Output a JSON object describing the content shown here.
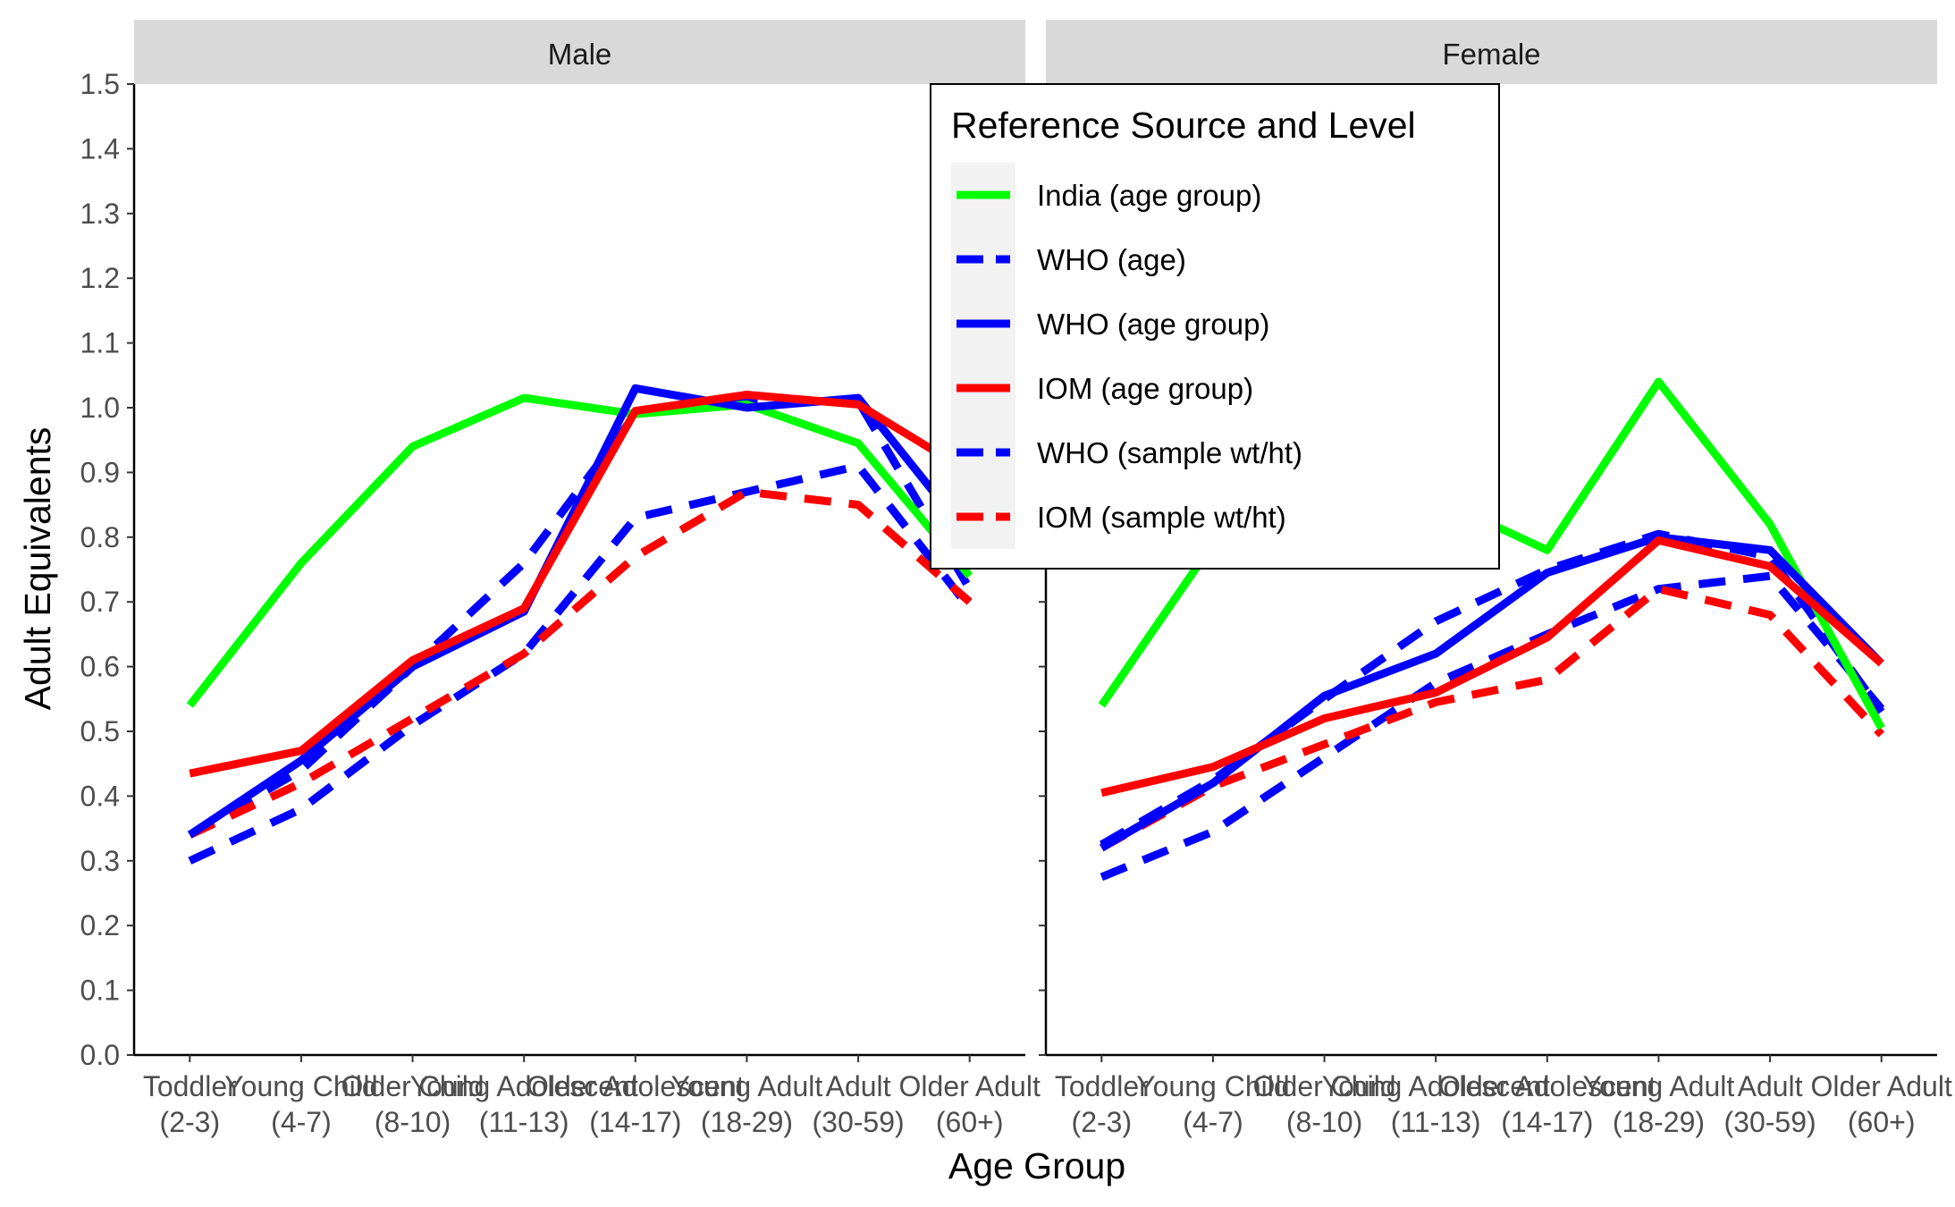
{
  "chart_data": {
    "type": "line",
    "xlabel": "Age Group",
    "ylabel": "Adult Equivalents",
    "ylim": [
      0,
      1.5
    ],
    "yticks": [
      "0.0",
      "0.1",
      "0.2",
      "0.3",
      "0.4",
      "0.5",
      "0.6",
      "0.7",
      "0.8",
      "0.9",
      "1.0",
      "1.1",
      "1.2",
      "1.3",
      "1.4",
      "1.5"
    ],
    "categories": [
      [
        "Toddler",
        "(2-3)"
      ],
      [
        "Young Child",
        "(4-7)"
      ],
      [
        "Older Child",
        "(8-10)"
      ],
      [
        "Young Adolescent",
        "(11-13)"
      ],
      [
        "Older Adolescent",
        "(14-17)"
      ],
      [
        "Young Adult",
        "(18-29)"
      ],
      [
        "Adult",
        "(30-59)"
      ],
      [
        "Older Adult",
        "(60+)"
      ]
    ],
    "grid": false,
    "legend": {
      "title": "Reference Source and Level",
      "placement": "top-center",
      "entries": [
        {
          "name": "India (age group)",
          "color": "#00ff00",
          "dash": "solid"
        },
        {
          "name": "WHO (age)",
          "color": "#0000ff",
          "dash": "dashed"
        },
        {
          "name": "WHO (age group)",
          "color": "#0000ff",
          "dash": "solid"
        },
        {
          "name": "IOM (age group)",
          "color": "#ff0000",
          "dash": "solid"
        },
        {
          "name": "WHO (sample wt/ht)",
          "color": "#0000ff",
          "dash": "dashed"
        },
        {
          "name": "IOM (sample wt/ht)",
          "color": "#ff0000",
          "dash": "dashed"
        }
      ]
    },
    "panels": [
      {
        "strip": "Male",
        "series": [
          {
            "name": "WHO (age)",
            "color": "#0000ff",
            "dash": "dashed",
            "values": [
              0.3,
              0.38,
              0.51,
              0.62,
              0.83,
              0.87,
              0.91,
              0.69
            ]
          },
          {
            "name": "WHO (sample wt/ht)",
            "color": "#0000ff",
            "dash": "dashed",
            "values": [
              0.34,
              0.44,
              0.6,
              0.76,
              0.99,
              1.01,
              1.01,
              0.72
            ]
          },
          {
            "name": "IOM (sample wt/ht)",
            "color": "#ff0000",
            "dash": "dashed",
            "values": [
              0.34,
              0.42,
              0.52,
              0.62,
              0.77,
              0.87,
              0.85,
              0.7
            ]
          },
          {
            "name": "India (age group)",
            "color": "#00ff00",
            "dash": "solid",
            "values": [
              0.54,
              0.76,
              0.94,
              1.015,
              0.99,
              1.005,
              0.945,
              0.74
            ]
          },
          {
            "name": "WHO (age group)",
            "color": "#0000ff",
            "dash": "solid",
            "values": [
              0.34,
              0.455,
              0.6,
              0.685,
              1.03,
              1.0,
              1.015,
              0.8
            ]
          },
          {
            "name": "IOM (age group)",
            "color": "#ff0000",
            "dash": "solid",
            "values": [
              0.435,
              0.47,
              0.61,
              0.69,
              0.995,
              1.02,
              1.005,
              0.9
            ]
          }
        ]
      },
      {
        "strip": "Female",
        "series": [
          {
            "name": "WHO (age)",
            "color": "#0000ff",
            "dash": "dashed",
            "values": [
              0.275,
              0.345,
              0.46,
              0.575,
              0.65,
              0.72,
              0.74,
              0.535
            ]
          },
          {
            "name": "WHO (sample wt/ht)",
            "color": "#0000ff",
            "dash": "dashed",
            "values": [
              0.325,
              0.425,
              0.55,
              0.67,
              0.75,
              0.805,
              0.77,
              0.53
            ]
          },
          {
            "name": "IOM (sample wt/ht)",
            "color": "#ff0000",
            "dash": "dashed",
            "values": [
              0.32,
              0.415,
              0.48,
              0.545,
              0.58,
              0.72,
              0.68,
              0.495
            ]
          },
          {
            "name": "India (age group)",
            "color": "#00ff00",
            "dash": "solid",
            "values": [
              0.54,
              0.79,
              0.85,
              0.86,
              0.78,
              1.04,
              0.82,
              0.505
            ]
          },
          {
            "name": "WHO (age group)",
            "color": "#0000ff",
            "dash": "solid",
            "values": [
              0.32,
              0.42,
              0.555,
              0.62,
              0.745,
              0.8,
              0.78,
              0.605
            ]
          },
          {
            "name": "IOM (age group)",
            "color": "#ff0000",
            "dash": "solid",
            "values": [
              0.405,
              0.445,
              0.52,
              0.56,
              0.645,
              0.795,
              0.755,
              0.605
            ]
          }
        ]
      }
    ]
  }
}
